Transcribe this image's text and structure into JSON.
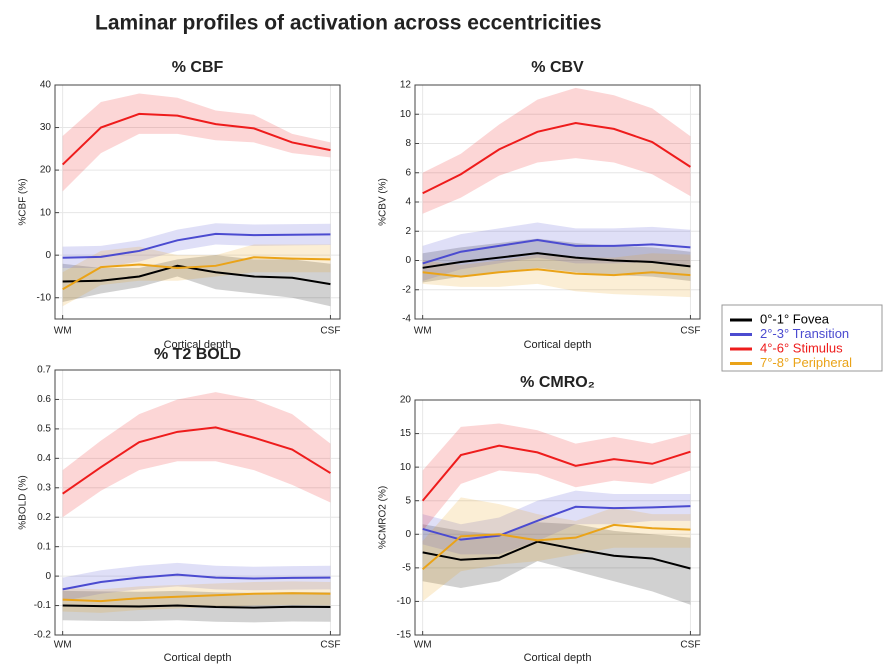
{
  "title": "Laminar profiles of activation across eccentricities",
  "legend": [
    {
      "name": "0°-1° Fovea",
      "color": "#000000"
    },
    {
      "name": "2°-3° Transition",
      "color": "#4b4bd0"
    },
    {
      "name": "4°-6° Stimulus",
      "color": "#ee1c1c"
    },
    {
      "name": "7°-8° Peripheral",
      "color": "#eaa318"
    }
  ],
  "chart_data": [
    {
      "type": "line",
      "title": "% CBF",
      "ylabel": "%CBF (%)",
      "xlabel": "Cortical depth",
      "x": [
        1,
        2,
        3,
        4,
        5,
        6,
        7,
        8
      ],
      "xlim": [
        0.8,
        8.25
      ],
      "xticks": [
        {
          "value": 1,
          "label": "WM"
        },
        {
          "value": 8,
          "label": "CSF"
        }
      ],
      "ylim": [
        -15,
        40
      ],
      "yticks": [
        -10,
        0,
        10,
        20,
        30,
        40
      ],
      "grid": true,
      "series": [
        {
          "values": [
            -6.2,
            -6,
            -5,
            -2.5,
            -4,
            -5,
            -5.3,
            -6.8
          ],
          "lower": [
            -11,
            -9,
            -7.5,
            -5,
            -8,
            -9,
            -10,
            -12
          ],
          "upper": [
            -2,
            -3,
            -3,
            -1,
            0,
            -1,
            -1,
            -2
          ]
        },
        {
          "values": [
            -0.6,
            -0.4,
            1,
            3.5,
            5,
            4.7,
            4.8,
            4.9
          ],
          "lower": [
            -3,
            -3,
            -1.5,
            1,
            2.5,
            2.2,
            2.3,
            2.4
          ],
          "upper": [
            2,
            2.2,
            3.5,
            6,
            7.5,
            7.2,
            7.3,
            7.4
          ]
        },
        {
          "values": [
            21.3,
            30,
            33.2,
            32.8,
            30.8,
            29.8,
            26.5,
            24.7
          ],
          "lower": [
            15,
            24,
            28.5,
            28.5,
            27,
            26.5,
            24,
            23
          ],
          "upper": [
            28,
            36,
            38,
            37,
            34,
            33,
            28.5,
            26.5
          ]
        },
        {
          "values": [
            -8,
            -2.8,
            -2.2,
            -3,
            -2.5,
            -0.5,
            -0.8,
            -1
          ],
          "lower": [
            -12,
            -7,
            -6,
            -6,
            -5,
            -4,
            -4,
            -4
          ],
          "upper": [
            -4,
            1,
            2,
            0,
            0,
            2.5,
            2.5,
            2.5
          ]
        }
      ]
    },
    {
      "type": "line",
      "title": "% CBV",
      "ylabel": "%CBV (%)",
      "xlabel": "Cortical depth",
      "x": [
        1,
        2,
        3,
        4,
        5,
        6,
        7,
        8
      ],
      "xlim": [
        0.8,
        8.25
      ],
      "xticks": [
        {
          "value": 1,
          "label": "WM"
        },
        {
          "value": 8,
          "label": "CSF"
        }
      ],
      "ylim": [
        -4,
        12
      ],
      "yticks": [
        -4,
        -2,
        0,
        2,
        4,
        6,
        8,
        10,
        12
      ],
      "grid": true,
      "series": [
        {
          "values": [
            -0.5,
            -0.1,
            0.2,
            0.5,
            0.2,
            0,
            -0.1,
            -0.4
          ],
          "lower": [
            -1.5,
            -1.1,
            -0.8,
            -0.5,
            -0.8,
            -1,
            -1.1,
            -1.4
          ],
          "upper": [
            0.5,
            0.9,
            1.2,
            1.5,
            1.2,
            1,
            0.9,
            0.6
          ]
        },
        {
          "values": [
            -0.2,
            0.6,
            1,
            1.4,
            1,
            1,
            1.1,
            0.9
          ],
          "lower": [
            -1.4,
            -0.6,
            -0.2,
            0.2,
            -0.2,
            -0.2,
            -0.1,
            -0.3
          ],
          "upper": [
            1,
            1.8,
            2.2,
            2.6,
            2.2,
            2.2,
            2.3,
            2.1
          ]
        },
        {
          "values": [
            4.6,
            5.9,
            7.6,
            8.8,
            9.4,
            9,
            8.1,
            6.4
          ],
          "lower": [
            3.2,
            4.3,
            5.8,
            6.7,
            7,
            6.7,
            5.9,
            4.4
          ],
          "upper": [
            6,
            7.3,
            9.3,
            11,
            11.8,
            11.3,
            10.4,
            8.5
          ]
        },
        {
          "values": [
            -0.8,
            -1.1,
            -0.8,
            -0.6,
            -0.9,
            -1,
            -0.8,
            -1
          ],
          "lower": [
            -1.6,
            -1.8,
            -1.8,
            -1.6,
            -2.1,
            -2.3,
            -2.4,
            -2.5
          ],
          "upper": [
            0,
            -0.3,
            0,
            0.4,
            0.2,
            0.2,
            0.5,
            0.4
          ]
        }
      ]
    },
    {
      "type": "line",
      "title": "% T2 BOLD",
      "ylabel": "%BOLD (%)",
      "xlabel": "Cortical depth",
      "x": [
        1,
        2,
        3,
        4,
        5,
        6,
        7,
        8
      ],
      "xlim": [
        0.8,
        8.25
      ],
      "xticks": [
        {
          "value": 1,
          "label": "WM"
        },
        {
          "value": 8,
          "label": "CSF"
        }
      ],
      "ylim": [
        -0.2,
        0.7
      ],
      "yticks": [
        -0.2,
        -0.1,
        0,
        0.1,
        0.2,
        0.3,
        0.4,
        0.5,
        0.6,
        0.7
      ],
      "grid": true,
      "series": [
        {
          "values": [
            -0.1,
            -0.102,
            -0.103,
            -0.1,
            -0.105,
            -0.107,
            -0.104,
            -0.105
          ],
          "lower": [
            -0.15,
            -0.152,
            -0.153,
            -0.15,
            -0.155,
            -0.157,
            -0.154,
            -0.155
          ],
          "upper": [
            -0.05,
            -0.052,
            -0.053,
            -0.05,
            -0.055,
            -0.057,
            -0.054,
            -0.055
          ]
        },
        {
          "values": [
            -0.045,
            -0.02,
            -0.005,
            0.005,
            -0.005,
            -0.008,
            -0.006,
            -0.005
          ],
          "lower": [
            -0.085,
            -0.06,
            -0.045,
            -0.035,
            -0.045,
            -0.048,
            -0.046,
            -0.045
          ],
          "upper": [
            -0.005,
            0.02,
            0.035,
            0.045,
            0.035,
            0.032,
            0.034,
            0.035
          ]
        },
        {
          "values": [
            0.28,
            0.37,
            0.455,
            0.49,
            0.505,
            0.47,
            0.43,
            0.35
          ],
          "lower": [
            0.2,
            0.29,
            0.36,
            0.39,
            0.39,
            0.36,
            0.31,
            0.25
          ],
          "upper": [
            0.36,
            0.46,
            0.55,
            0.6,
            0.625,
            0.6,
            0.55,
            0.45
          ]
        },
        {
          "values": [
            -0.08,
            -0.085,
            -0.075,
            -0.07,
            -0.065,
            -0.06,
            -0.058,
            -0.06
          ],
          "lower": [
            -0.12,
            -0.125,
            -0.115,
            -0.11,
            -0.105,
            -0.1,
            -0.098,
            -0.1
          ],
          "upper": [
            -0.04,
            -0.045,
            -0.035,
            -0.03,
            -0.025,
            -0.02,
            -0.018,
            -0.02
          ]
        }
      ]
    },
    {
      "type": "line",
      "title": "% CMRO₂",
      "ylabel": "%CMRO2 (%)",
      "xlabel": "Cortical depth",
      "x": [
        1,
        2,
        3,
        4,
        5,
        6,
        7,
        8
      ],
      "xlim": [
        0.8,
        8.25
      ],
      "xticks": [
        {
          "value": 1,
          "label": "WM"
        },
        {
          "value": 8,
          "label": "CSF"
        }
      ],
      "ylim": [
        -15,
        20
      ],
      "yticks": [
        -15,
        -10,
        -5,
        0,
        5,
        10,
        15,
        20
      ],
      "grid": true,
      "series": [
        {
          "values": [
            -2.7,
            -3.8,
            -3.5,
            -1.1,
            -2.2,
            -3.2,
            -3.6,
            -5.1
          ],
          "lower": [
            -7,
            -8,
            -7,
            -4,
            -5.5,
            -7,
            -8.5,
            -10.5
          ],
          "upper": [
            1.5,
            0.5,
            0,
            1.8,
            1.5,
            0.5,
            0,
            -0.5
          ]
        },
        {
          "values": [
            0.8,
            -0.8,
            -0.2,
            2,
            4.1,
            3.9,
            4,
            4.2
          ],
          "lower": [
            -1.5,
            -3,
            -3,
            -1,
            1.5,
            1.5,
            2,
            2
          ],
          "upper": [
            3,
            1.5,
            2.5,
            5,
            6.5,
            6,
            6,
            6
          ]
        },
        {
          "values": [
            5,
            11.8,
            13.2,
            12.2,
            10.2,
            11.2,
            10.5,
            12.3
          ],
          "lower": [
            0.5,
            7.5,
            9.5,
            9,
            7,
            8,
            7.5,
            9.5
          ],
          "upper": [
            9.5,
            16,
            16.5,
            15.5,
            13.5,
            14.5,
            13.5,
            15
          ]
        },
        {
          "values": [
            -5.2,
            -0.3,
            0,
            -0.9,
            -0.5,
            1.4,
            0.9,
            0.7
          ],
          "lower": [
            -10,
            -5.5,
            -4.5,
            -4,
            -3,
            -2,
            -2,
            -2
          ],
          "upper": [
            -1,
            5.5,
            4.5,
            3,
            2,
            4,
            3,
            3
          ]
        }
      ]
    }
  ]
}
